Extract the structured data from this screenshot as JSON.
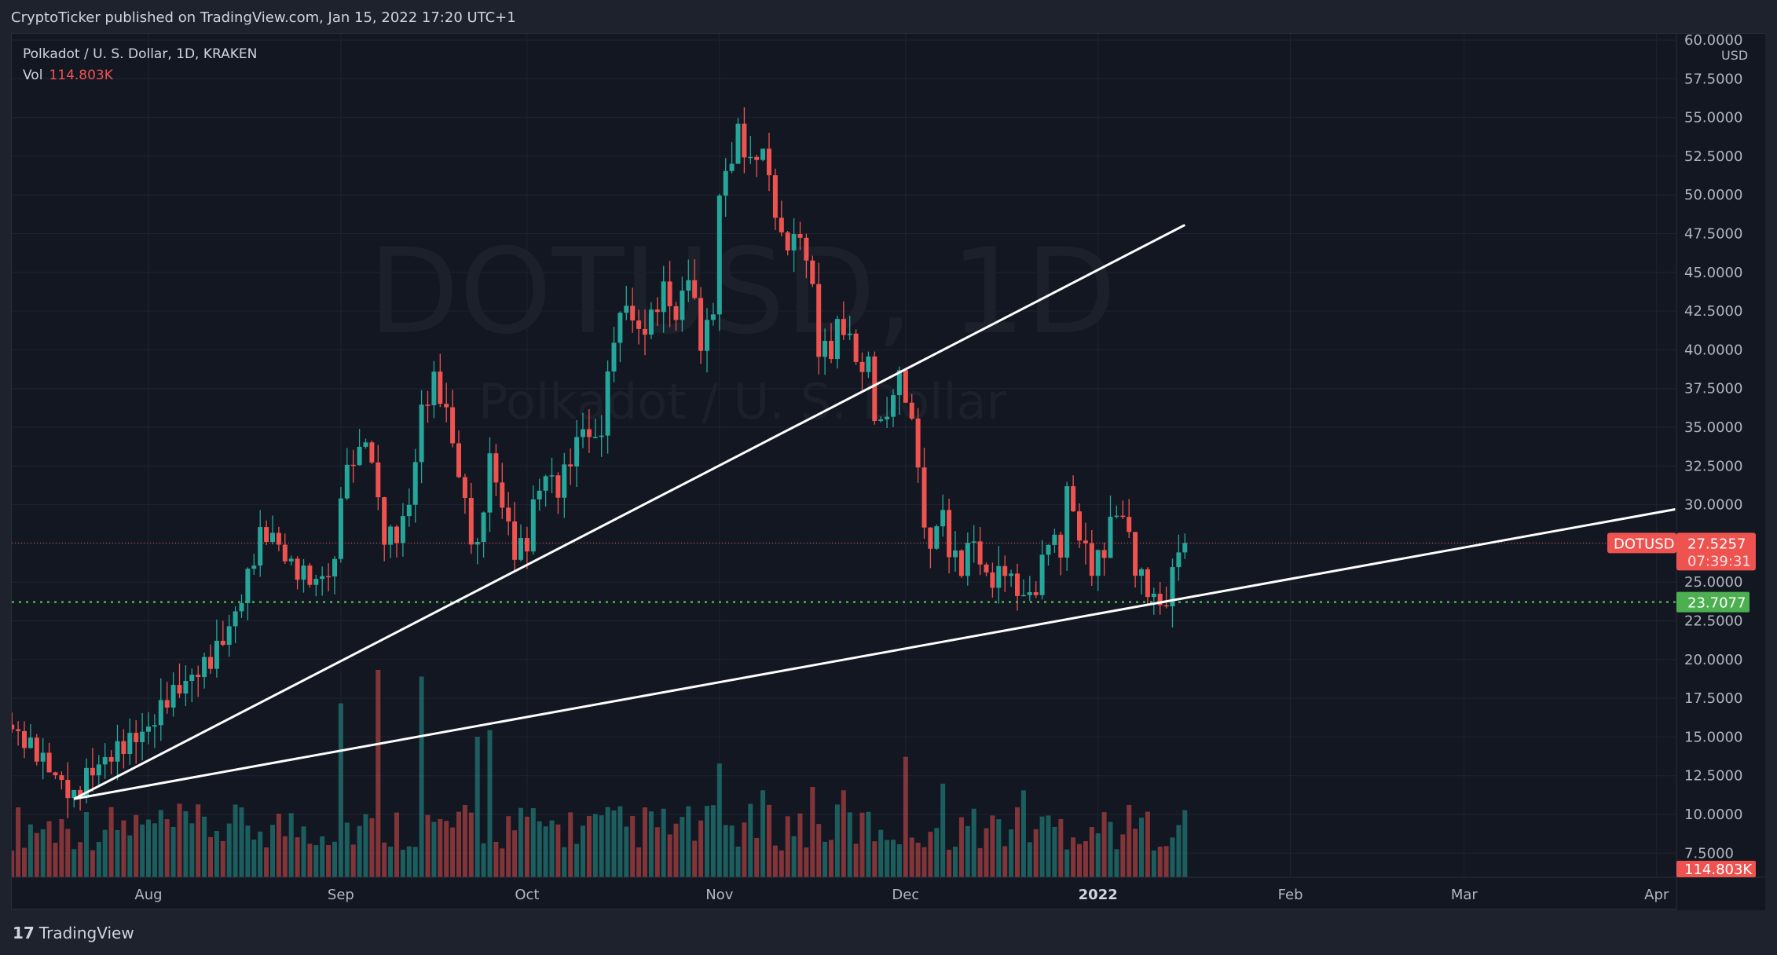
{
  "header": {
    "published": "CryptoTicker published on TradingView.com, Jan 15, 2022 17:20 UTC+1"
  },
  "legend": {
    "symbol": "Polkadot / U. S. Dollar, 1D, KRAKEN",
    "vol_label": "Vol",
    "vol_value": "114.803K"
  },
  "watermark": {
    "main": "DOTUSD, 1D",
    "sub": "Polkadot / U. S. Dollar"
  },
  "footer": {
    "brand": "TradingView",
    "logo": "17"
  },
  "colors": {
    "up": "#26a69a",
    "down": "#ef5350",
    "support": "#4caf50",
    "bg": "#131722",
    "grid": "#1f2330"
  },
  "chart_data": {
    "type": "candlestick",
    "title": "Polkadot / U. S. Dollar, 1D, KRAKEN",
    "start_date": "2021-07-10",
    "currency": "USD",
    "ylim": [
      7.5,
      60
    ],
    "y_ticks": [
      "60.0000",
      "57.5000",
      "55.0000",
      "52.5000",
      "50.0000",
      "47.5000",
      "45.0000",
      "42.5000",
      "40.0000",
      "37.5000",
      "35.0000",
      "32.5000",
      "30.0000",
      "27.5000",
      "25.0000",
      "22.5000",
      "20.0000",
      "17.5000",
      "15.0000",
      "12.5000",
      "10.0000",
      "7.5000"
    ],
    "x_ticks": [
      {
        "label": "Aug",
        "day": 22
      },
      {
        "label": "Sep",
        "day": 53
      },
      {
        "label": "Oct",
        "day": 83
      },
      {
        "label": "Nov",
        "day": 114
      },
      {
        "label": "Dec",
        "day": 144
      },
      {
        "label": "2022",
        "day": 175,
        "bold": true
      },
      {
        "label": "Feb",
        "day": 206
      },
      {
        "label": "Mar",
        "day": 234
      },
      {
        "label": "Apr",
        "day": 265
      }
    ],
    "close_keyframes": [
      [
        0,
        15.5
      ],
      [
        4,
        14
      ],
      [
        8,
        12
      ],
      [
        10,
        11
      ],
      [
        12,
        12.5
      ],
      [
        15,
        13.5
      ],
      [
        18,
        14.5
      ],
      [
        22,
        15.5
      ],
      [
        25,
        17.5
      ],
      [
        28,
        18.5
      ],
      [
        32,
        20
      ],
      [
        35,
        22
      ],
      [
        37,
        24
      ],
      [
        40,
        28
      ],
      [
        42,
        28
      ],
      [
        45,
        26
      ],
      [
        49,
        25
      ],
      [
        52,
        26
      ],
      [
        53,
        31
      ],
      [
        55,
        33
      ],
      [
        57,
        34
      ],
      [
        58,
        33
      ],
      [
        59,
        30
      ],
      [
        60,
        28
      ],
      [
        62,
        28
      ],
      [
        64,
        30
      ],
      [
        66,
        36
      ],
      [
        68,
        38
      ],
      [
        70,
        36
      ],
      [
        72,
        32
      ],
      [
        74,
        28
      ],
      [
        75,
        27
      ],
      [
        77,
        33
      ],
      [
        79,
        30
      ],
      [
        81,
        27
      ],
      [
        83,
        27.5
      ],
      [
        84,
        30
      ],
      [
        86,
        32
      ],
      [
        88,
        31
      ],
      [
        90,
        33
      ],
      [
        92,
        35
      ],
      [
        94,
        34
      ],
      [
        95,
        35
      ],
      [
        97,
        41
      ],
      [
        99,
        43
      ],
      [
        101,
        41
      ],
      [
        103,
        42
      ],
      [
        105,
        44
      ],
      [
        107,
        42
      ],
      [
        109,
        45
      ],
      [
        111,
        40.5
      ],
      [
        113,
        42.5
      ],
      [
        114,
        50
      ],
      [
        116,
        52.5
      ],
      [
        117,
        54
      ],
      [
        119,
        52
      ],
      [
        121,
        53
      ],
      [
        122,
        51
      ],
      [
        124,
        47
      ],
      [
        126,
        47
      ],
      [
        127,
        47.5
      ],
      [
        129,
        44
      ],
      [
        130,
        40
      ],
      [
        132,
        40
      ],
      [
        133,
        41.5
      ],
      [
        135,
        41
      ],
      [
        136,
        39
      ],
      [
        138,
        39
      ],
      [
        139,
        36
      ],
      [
        140,
        35
      ],
      [
        142,
        37
      ],
      [
        143,
        38.5
      ],
      [
        144,
        37
      ],
      [
        145,
        35
      ],
      [
        146,
        33
      ],
      [
        147,
        28
      ],
      [
        148,
        27.5
      ],
      [
        150,
        29.5
      ],
      [
        151,
        27
      ],
      [
        153,
        26
      ],
      [
        155,
        28
      ],
      [
        156,
        26
      ],
      [
        158,
        25
      ],
      [
        160,
        26
      ],
      [
        161,
        25
      ],
      [
        163,
        24
      ],
      [
        165,
        24.5
      ],
      [
        167,
        28
      ],
      [
        169,
        27
      ],
      [
        170,
        31
      ],
      [
        172,
        28
      ],
      [
        174,
        26
      ],
      [
        176,
        27
      ],
      [
        177,
        29
      ],
      [
        179,
        29.5
      ],
      [
        181,
        26
      ],
      [
        183,
        24.5
      ],
      [
        185,
        23.5
      ],
      [
        186,
        23.7
      ],
      [
        187,
        25.5
      ],
      [
        188,
        27.5
      ],
      [
        189,
        27.5257
      ]
    ],
    "last_price": 27.5257,
    "last_price_label": "DOTUSD",
    "countdown": "07:39:31",
    "support_level": 23.7077,
    "volume_last": "114.803K",
    "volume_spikes_k": [
      [
        53,
        260
      ],
      [
        59,
        310
      ],
      [
        66,
        300
      ],
      [
        75,
        210
      ],
      [
        77,
        220
      ],
      [
        114,
        170
      ],
      [
        121,
        130
      ],
      [
        129,
        135
      ],
      [
        134,
        130
      ],
      [
        144,
        180
      ],
      [
        150,
        140
      ],
      [
        163,
        130
      ]
    ],
    "trendlines": [
      {
        "from": [
          10,
          11.0
        ],
        "to": [
          189,
          48.06
        ]
      },
      {
        "from": [
          10,
          11.0
        ],
        "to": [
          268,
          29.7
        ]
      }
    ]
  }
}
